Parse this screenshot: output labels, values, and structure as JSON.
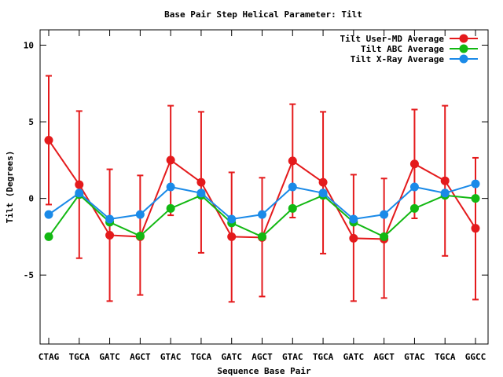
{
  "chart_data": {
    "type": "line",
    "title": "Base Pair Step Helical Parameter: Tilt",
    "xlabel": "Sequence Base Pair",
    "ylabel": "Tilt (Degrees)",
    "ylim": [
      -9.5,
      11
    ],
    "yticks": [
      10,
      5,
      0,
      -5
    ],
    "grid": false,
    "legend_position": "top-right",
    "categories": [
      "CTAG",
      "TGCA",
      "GATC",
      "AGCT",
      "GTAC",
      "TGCA",
      "GATC",
      "AGCT",
      "GTAC",
      "TGCA",
      "GATC",
      "AGCT",
      "GTAC",
      "TGCA",
      "GGCC"
    ],
    "series": [
      {
        "name": "Tilt User-MD Average",
        "color": "#e41a1c",
        "values": [
          3.8,
          0.9,
          -2.4,
          -2.5,
          2.5,
          1.05,
          -2.5,
          -2.55,
          2.45,
          1.05,
          -2.6,
          -2.65,
          2.25,
          1.15,
          -1.95
        ],
        "error_low": [
          -0.4,
          -3.9,
          -6.7,
          -6.3,
          -1.1,
          -3.55,
          -6.75,
          -6.4,
          -1.25,
          -3.6,
          -6.7,
          -6.5,
          -1.3,
          -3.75,
          -6.6
        ],
        "error_high": [
          8.0,
          5.7,
          1.9,
          1.5,
          6.05,
          5.65,
          1.7,
          1.35,
          6.15,
          5.65,
          1.55,
          1.3,
          5.8,
          6.05,
          2.65
        ]
      },
      {
        "name": "Tilt ABC Average",
        "color": "#12b812",
        "values": [
          -2.5,
          0.25,
          -1.55,
          -2.45,
          -0.65,
          0.2,
          -1.6,
          -2.5,
          -0.65,
          0.2,
          -1.55,
          -2.5,
          -0.65,
          0.2,
          0.0
        ]
      },
      {
        "name": "Tilt X-Ray Average",
        "color": "#1a8ae8",
        "values": [
          -1.05,
          0.35,
          -1.35,
          -1.05,
          0.75,
          0.35,
          -1.35,
          -1.05,
          0.75,
          0.35,
          -1.35,
          -1.05,
          0.75,
          0.35,
          0.95
        ]
      }
    ]
  }
}
